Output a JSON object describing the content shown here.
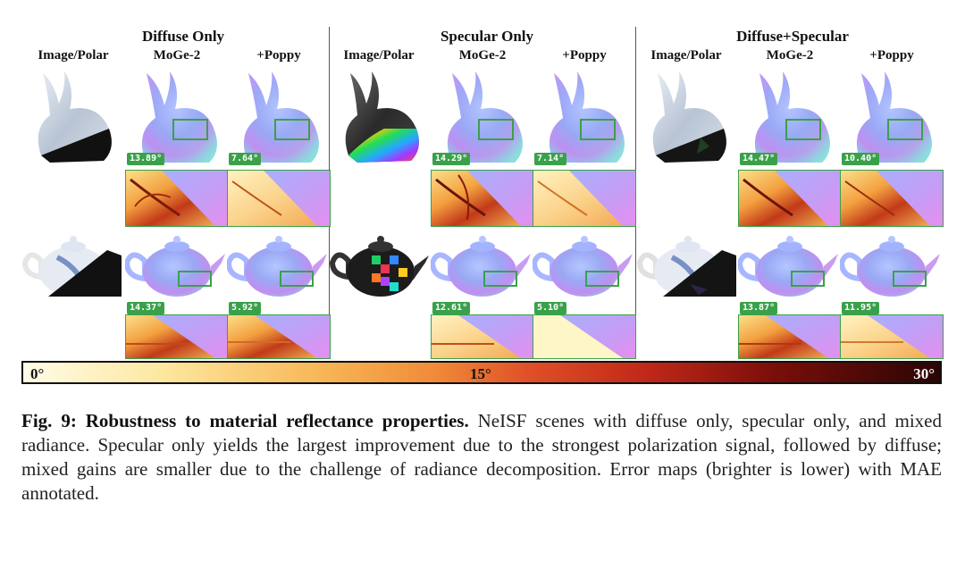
{
  "groups": [
    {
      "title": "Diffuse Only",
      "cols": [
        "Image/Polar",
        "MoGe-2",
        "+Poppy"
      ],
      "bunny_mae": [
        "13.89°",
        "7.64°"
      ],
      "teapot_mae": [
        "14.37°",
        "5.92°"
      ]
    },
    {
      "title": "Specular Only",
      "cols": [
        "Image/Polar",
        "MoGe-2",
        "+Poppy"
      ],
      "bunny_mae": [
        "14.29°",
        "7.14°"
      ],
      "teapot_mae": [
        "12.61°",
        "5.10°"
      ]
    },
    {
      "title": "Diffuse+Specular",
      "cols": [
        "Image/Polar",
        "MoGe-2",
        "+Poppy"
      ],
      "bunny_mae": [
        "14.47°",
        "10.40°"
      ],
      "teapot_mae": [
        "13.87°",
        "11.95°"
      ]
    }
  ],
  "colorbar": {
    "min": "0°",
    "mid": "15°",
    "max": "30°"
  },
  "caption": {
    "label": "Fig. 9:",
    "title": "Robustness to material reflectance properties.",
    "body": "NeISF scenes with diffuse only, specular only, and mixed radiance. Specular only yields the largest improvement due to the strongest polarization signal, followed by diffuse; mixed gains are smaller due to the challenge of radiance decomposition. Error maps (brighter is lower) with MAE annotated."
  },
  "colors": {
    "badge": "#3aa14a",
    "normal_base": "#8fa4f0"
  }
}
